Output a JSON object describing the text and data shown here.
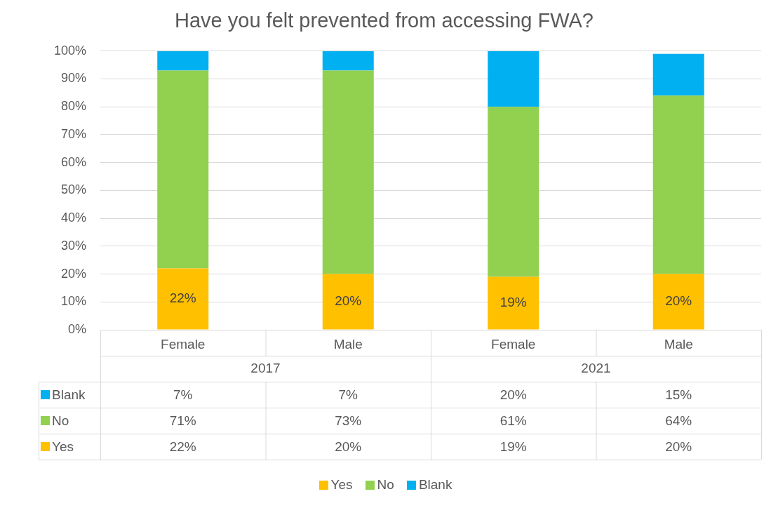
{
  "chart_data": {
    "type": "bar",
    "title": "Have you felt prevented from accessing FWA?",
    "categories": [
      "Female",
      "Male",
      "Female",
      "Male"
    ],
    "annotations": [
      "2017",
      "2021"
    ],
    "stacked": true,
    "series": [
      {
        "name": "Yes",
        "color": "#ffc000",
        "values": [
          22,
          20,
          19,
          20
        ],
        "value_labels": [
          "22%",
          "20%",
          "19%",
          "20%"
        ]
      },
      {
        "name": "No",
        "color": "#92d050",
        "values": [
          71,
          73,
          61,
          64
        ],
        "value_labels": [
          "71%",
          "73%",
          "61%",
          "64%"
        ]
      },
      {
        "name": "Blank",
        "color": "#00b0f0",
        "values": [
          7,
          7,
          20,
          15
        ],
        "value_labels": [
          "7%",
          "7%",
          "20%",
          "15%"
        ]
      }
    ],
    "ylim": [
      0,
      100
    ],
    "yticks": [
      {
        "value": 0,
        "label": "0%"
      },
      {
        "value": 10,
        "label": "10%"
      },
      {
        "value": 20,
        "label": "20%"
      },
      {
        "value": 30,
        "label": "30%"
      },
      {
        "value": 40,
        "label": "40%"
      },
      {
        "value": 50,
        "label": "50%"
      },
      {
        "value": 60,
        "label": "60%"
      },
      {
        "value": 70,
        "label": "70%"
      },
      {
        "value": 80,
        "label": "80%"
      },
      {
        "value": 90,
        "label": "90%"
      },
      {
        "value": 100,
        "label": "100%"
      }
    ],
    "grid": "y",
    "legend": "bottom"
  }
}
